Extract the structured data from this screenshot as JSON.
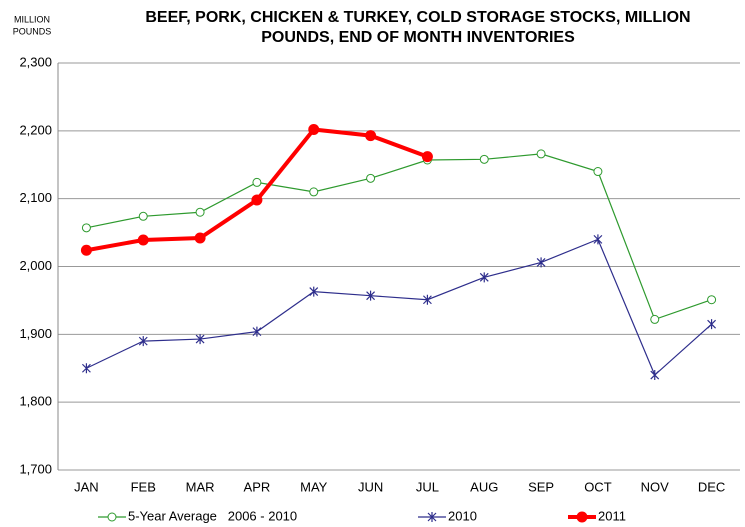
{
  "chart_data": {
    "type": "line",
    "title": [
      "BEEF, PORK, CHICKEN & TURKEY, COLD STORAGE STOCKS, MILLION",
      "POUNDS, END OF MONTH INVENTORIES"
    ],
    "y_label": [
      "MILLION",
      "POUNDS"
    ],
    "categories": [
      "JAN",
      "FEB",
      "MAR",
      "APR",
      "MAY",
      "JUN",
      "JUL",
      "AUG",
      "SEP",
      "OCT",
      "NOV",
      "DEC"
    ],
    "series": [
      {
        "name": "5-Year Average   2006 - 2010",
        "color": "#2e9a2e",
        "marker": "open-circle",
        "values": [
          2057,
          2074,
          2080,
          2124,
          2110,
          2130,
          2157,
          2158,
          2166,
          2140,
          1922,
          1951
        ]
      },
      {
        "name": "2010",
        "color": "#2e2e8c",
        "marker": "star",
        "values": [
          1850,
          1890,
          1893,
          1904,
          1963,
          1957,
          1951,
          1984,
          2006,
          2040,
          1840,
          1915
        ]
      },
      {
        "name": "2011",
        "color": "#ff0000",
        "marker": "filled-circle",
        "values": [
          2024,
          2039,
          2042,
          2098,
          2202,
          2193,
          2162,
          null,
          null,
          null,
          null,
          null
        ]
      }
    ],
    "ylim": [
      1700,
      2300
    ],
    "yticks": [
      {
        "value": 1700,
        "label": "1,700"
      },
      {
        "value": 1800,
        "label": "1,800"
      },
      {
        "value": 1900,
        "label": "1,900"
      },
      {
        "value": 2000,
        "label": "2,000"
      },
      {
        "value": 2100,
        "label": "2,100"
      },
      {
        "value": 2200,
        "label": "2,200"
      },
      {
        "value": 2300,
        "label": "2,300"
      }
    ],
    "grid": true
  }
}
